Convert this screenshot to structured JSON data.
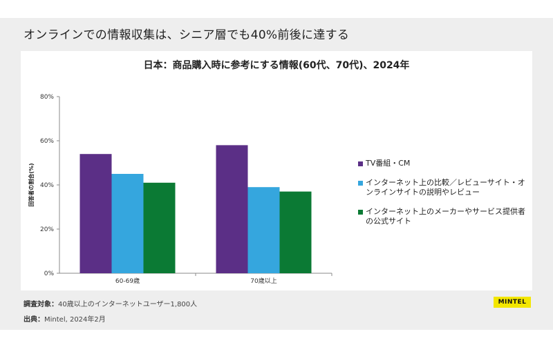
{
  "headline": "オンラインでの情報収集は、シニア層でも40%前後に達する",
  "footer": {
    "survey_label": "調査対象：",
    "survey_text": "40歳以上のインターネットユーザー1,800人",
    "source_label": "出典：",
    "source_text": "Mintel, 2024年2月"
  },
  "brand": "MINTEL",
  "colors": {
    "series1": "#5b2f86",
    "series2": "#35a6de",
    "series3": "#0b7a34"
  },
  "chart_data": {
    "type": "bar",
    "title": "日本：商品購入時に参考にする情報(60代、70代)、2024年",
    "ylabel": "回答者の割合(%)",
    "xlabel": "",
    "categories": [
      "60-69歳",
      "70歳以上"
    ],
    "ylim": [
      0,
      80
    ],
    "yticks": [
      "0%",
      "20%",
      "40%",
      "60%",
      "80%"
    ],
    "legend_position": "right",
    "series": [
      {
        "name": "TV番組・CM",
        "values": [
          54,
          58
        ]
      },
      {
        "name": "インターネット上の比較／レビューサイト・オンラインサイトの説明やレビュー",
        "values": [
          45,
          39
        ]
      },
      {
        "name": "インターネット上のメーカーやサービス提供者の公式サイト",
        "values": [
          41,
          37
        ]
      }
    ]
  }
}
